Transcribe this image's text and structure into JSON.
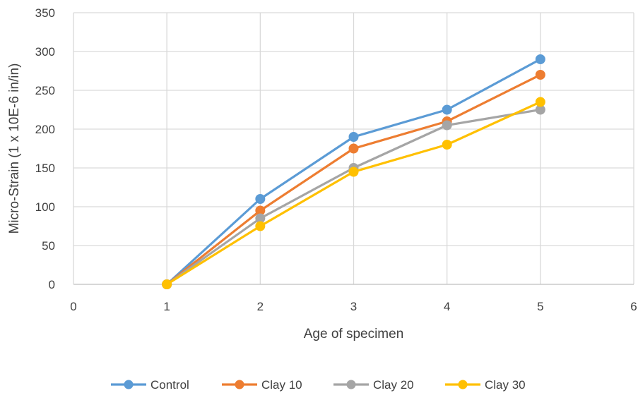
{
  "chart_data": {
    "type": "line",
    "title": "",
    "xlabel": "Age of specimen",
    "ylabel": "Micro-Strain (1 x 10E-6 in/in)",
    "xlim": [
      0,
      6
    ],
    "ylim": [
      0,
      350
    ],
    "x_ticks": [
      0,
      1,
      2,
      3,
      4,
      5,
      6
    ],
    "y_ticks": [
      0,
      50,
      100,
      150,
      200,
      250,
      300,
      350
    ],
    "x_tick_labels": [
      "0",
      "1",
      "2",
      "3",
      "4",
      "5",
      "6"
    ],
    "y_tick_labels": [
      "0",
      "50",
      "100",
      "150",
      "200",
      "250",
      "300",
      "350"
    ],
    "grid": true,
    "legend_position": "bottom",
    "x": [
      1,
      2,
      3,
      4,
      5
    ],
    "series": [
      {
        "name": "Control",
        "color": "#5B9BD5",
        "values": [
          0,
          110,
          190,
          225,
          290
        ]
      },
      {
        "name": "Clay 10",
        "color": "#ED7D31",
        "values": [
          0,
          95,
          175,
          210,
          270
        ]
      },
      {
        "name": "Clay 20",
        "color": "#A5A5A5",
        "values": [
          0,
          85,
          150,
          205,
          225
        ]
      },
      {
        "name": "Clay 30",
        "color": "#FFC000",
        "values": [
          0,
          75,
          145,
          180,
          235
        ]
      }
    ]
  }
}
